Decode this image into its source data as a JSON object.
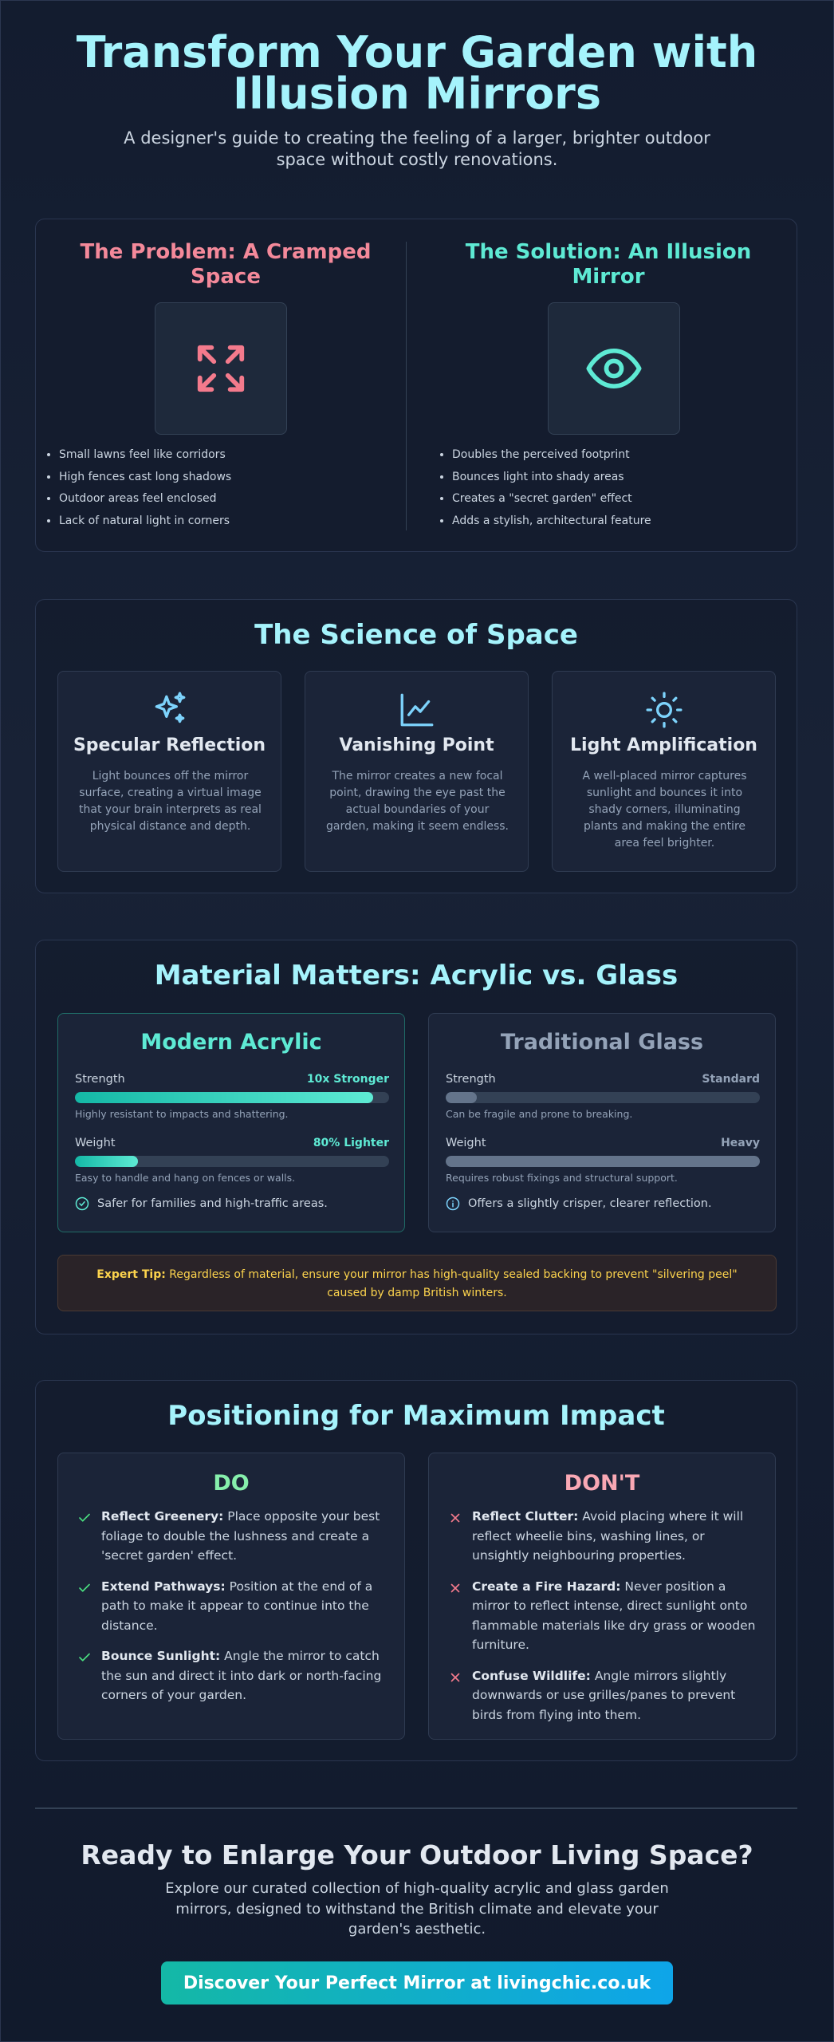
{
  "header": {
    "title": "Transform Your Garden with Illusion Mirrors",
    "subtitle": "A designer's guide to creating the feeling of a larger, brighter outdoor space without costly renovations."
  },
  "comparison": {
    "problem": {
      "title": "The Problem: A Cramped Space",
      "items": [
        "Small lawns feel like corridors",
        "High fences cast long shadows",
        "Outdoor areas feel enclosed",
        "Lack of natural light in corners"
      ]
    },
    "solution": {
      "title": "The Solution: An Illusion Mirror",
      "items": [
        "Doubles the perceived footprint",
        "Bounces light into shady areas",
        "Creates a \"secret garden\" effect",
        "Adds a stylish, architectural feature"
      ]
    }
  },
  "science": {
    "title": "The Science of Space",
    "cards": [
      {
        "title": "Specular Reflection",
        "text": "Light bounces off the mirror surface, creating a virtual image that your brain interprets as real physical distance and depth."
      },
      {
        "title": "Vanishing Point",
        "text": "The mirror creates a new focal point, drawing the eye past the actual boundaries of your garden, making it seem endless."
      },
      {
        "title": "Light Amplification",
        "text": "A well-placed mirror captures sunlight and bounces it into shady corners, illuminating plants and making the entire area feel brighter."
      }
    ]
  },
  "materials": {
    "title": "Material Matters: Acrylic vs. Glass",
    "acrylic": {
      "title": "Modern Acrylic",
      "metrics": [
        {
          "label": "Strength",
          "value": "10x Stronger",
          "note": "Highly resistant to impacts and shattering."
        },
        {
          "label": "Weight",
          "value": "80% Lighter",
          "note": "Easy to handle and hang on fences or walls."
        }
      ],
      "footnote": "Safer for families and high-traffic areas."
    },
    "glass": {
      "title": "Traditional Glass",
      "metrics": [
        {
          "label": "Strength",
          "value": "Standard",
          "note": "Can be fragile and prone to breaking."
        },
        {
          "label": "Weight",
          "value": "Heavy",
          "note": "Requires robust fixings and structural support."
        }
      ],
      "footnote": "Offers a slightly crisper, clearer reflection."
    },
    "tip": {
      "label": "Expert Tip:",
      "text": "Regardless of material, ensure your mirror has high-quality sealed backing to prevent \"silvering peel\" caused by damp British winters."
    }
  },
  "positioning": {
    "title": "Positioning for Maximum Impact",
    "do": {
      "title": "DO",
      "items": [
        {
          "bold": "Reflect Greenery:",
          "text": "Place opposite your best foliage to double the lushness and create a 'secret garden' effect."
        },
        {
          "bold": "Extend Pathways:",
          "text": "Position at the end of a path to make it appear to continue into the distance."
        },
        {
          "bold": "Bounce Sunlight:",
          "text": "Angle the mirror to catch the sun and direct it into dark or north-facing corners of your garden."
        }
      ]
    },
    "dont": {
      "title": "DON'T",
      "items": [
        {
          "bold": "Reflect Clutter:",
          "text": "Avoid placing where it will reflect wheelie bins, washing lines, or unsightly neighbouring properties."
        },
        {
          "bold": "Create a Fire Hazard:",
          "text": "Never position a mirror to reflect intense, direct sunlight onto flammable materials like dry grass or wooden furniture."
        },
        {
          "bold": "Confuse Wildlife:",
          "text": "Angle mirrors slightly downwards or use grilles/panes to prevent birds from flying into them."
        }
      ]
    }
  },
  "cta": {
    "title": "Ready to Enlarge Your Outdoor Living Space?",
    "text": "Explore our curated collection of high-quality acrylic and glass garden mirrors, designed to withstand the British climate and elevate your garden's aesthetic.",
    "button": "Discover Your Perfect Mirror at livingchic.co.uk"
  }
}
